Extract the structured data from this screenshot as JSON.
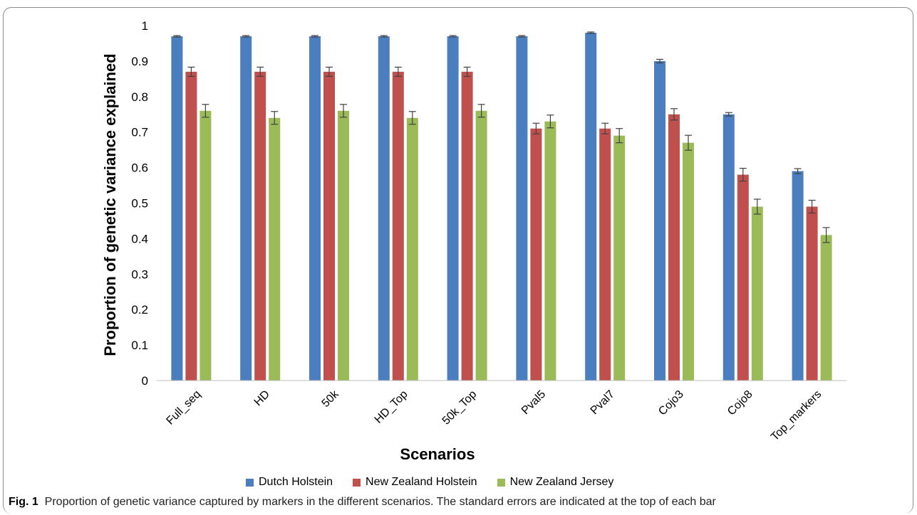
{
  "chart_data": {
    "type": "bar",
    "title": "",
    "xlabel": "Scenarios",
    "ylabel": "Proportion of genetic variance explained",
    "ylim": [
      0,
      1
    ],
    "yticks": [
      0,
      0.1,
      0.2,
      0.3,
      0.4,
      0.5,
      0.6,
      0.7,
      0.8,
      0.9,
      1
    ],
    "ytick_labels": [
      "0",
      "0.1",
      "0.2",
      "0.3",
      "0.4",
      "0.5",
      "0.6",
      "0.7",
      "0.8",
      "0.9",
      "1"
    ],
    "grid": false,
    "legend_position": "bottom",
    "categories": [
      "Full_seq",
      "HD",
      "50k",
      "HD_Top",
      "50k_Top",
      "Pval5",
      "Pval7",
      "Cojo3",
      "Cojo8",
      "Top_markers"
    ],
    "series": [
      {
        "name": "Dutch Holstein",
        "color": "#4a7ebf",
        "values": [
          0.97,
          0.97,
          0.97,
          0.97,
          0.97,
          0.97,
          0.98,
          0.9,
          0.75,
          0.59
        ],
        "errors": [
          0.002,
          0.002,
          0.002,
          0.002,
          0.002,
          0.002,
          0.002,
          0.005,
          0.005,
          0.007
        ]
      },
      {
        "name": "New Zealand Holstein",
        "color": "#c0504d",
        "values": [
          0.87,
          0.87,
          0.87,
          0.87,
          0.87,
          0.71,
          0.71,
          0.75,
          0.58,
          0.49
        ],
        "errors": [
          0.013,
          0.013,
          0.013,
          0.013,
          0.013,
          0.015,
          0.015,
          0.016,
          0.018,
          0.018
        ]
      },
      {
        "name": "New Zealand Jersey",
        "color": "#9bbb59",
        "values": [
          0.76,
          0.74,
          0.76,
          0.74,
          0.76,
          0.73,
          0.69,
          0.67,
          0.49,
          0.41
        ],
        "errors": [
          0.018,
          0.018,
          0.018,
          0.018,
          0.018,
          0.018,
          0.02,
          0.021,
          0.021,
          0.021
        ]
      }
    ]
  },
  "caption": {
    "label": "Fig. 1",
    "text": "Proportion of genetic variance captured by markers in the different scenarios. The standard errors are indicated at the top of each bar"
  }
}
